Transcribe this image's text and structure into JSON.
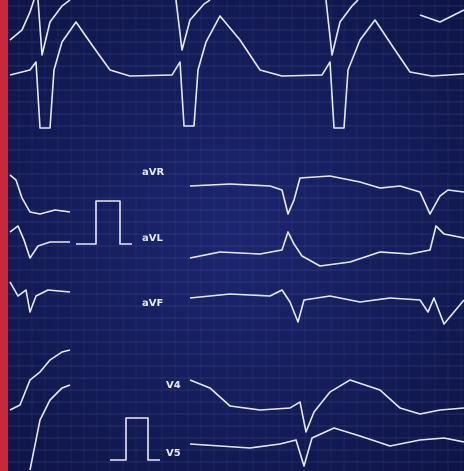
{
  "labels": [
    "aVR",
    "aVL",
    "aVF",
    "V4",
    "V5"
  ]
}
